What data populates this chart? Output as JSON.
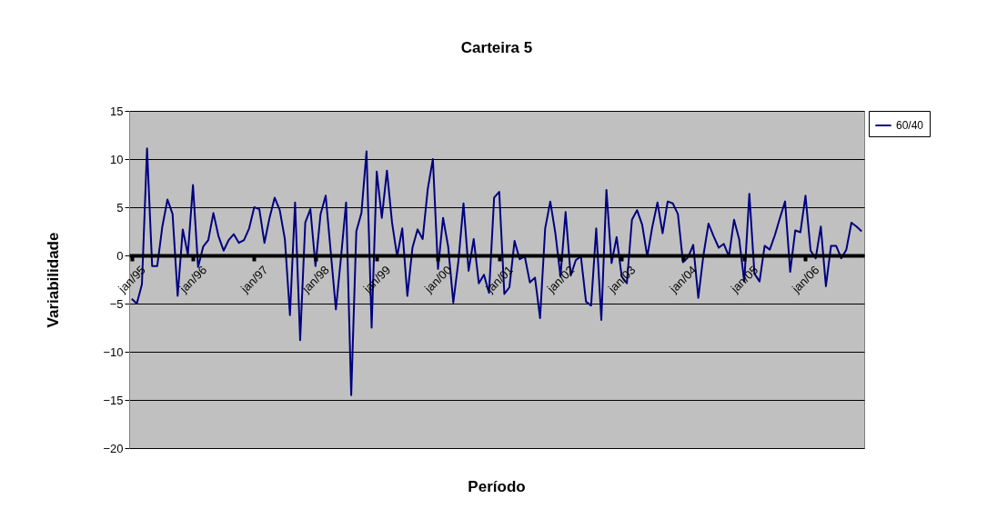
{
  "chart_data": {
    "type": "line",
    "title": "Carteira 5",
    "xlabel": "Período",
    "ylabel": "Variabilidade",
    "categories": [
      "jan/95",
      null,
      null,
      null,
      null,
      null,
      null,
      null,
      null,
      null,
      null,
      null,
      "jan/96",
      null,
      null,
      null,
      null,
      null,
      null,
      null,
      null,
      null,
      null,
      null,
      "jan/97",
      null,
      null,
      null,
      null,
      null,
      null,
      null,
      null,
      null,
      null,
      null,
      "jan/98",
      null,
      null,
      null,
      null,
      null,
      null,
      null,
      null,
      null,
      null,
      null,
      "jan/99",
      null,
      null,
      null,
      null,
      null,
      null,
      null,
      null,
      null,
      null,
      null,
      "jan/00",
      null,
      null,
      null,
      null,
      null,
      null,
      null,
      null,
      null,
      null,
      null,
      "jan/01",
      null,
      null,
      null,
      null,
      null,
      null,
      null,
      null,
      null,
      null,
      null,
      "jan/02",
      null,
      null,
      null,
      null,
      null,
      null,
      null,
      null,
      null,
      null,
      null,
      "jan/03",
      null,
      null,
      null,
      null,
      null,
      null,
      null,
      null,
      null,
      null,
      null,
      "jan/04",
      null,
      null,
      null,
      null,
      null,
      null,
      null,
      null,
      null,
      null,
      null,
      "jan/05",
      null,
      null,
      null,
      null,
      null,
      null,
      null,
      null,
      null,
      null,
      null,
      "jan/06",
      null,
      null,
      null,
      null,
      null,
      null,
      null,
      null,
      null,
      null,
      null
    ],
    "series": [
      {
        "name": "60/40",
        "color": "#000080",
        "values": [
          -4.5,
          -5.0,
          -3.0,
          11.1,
          -1.1,
          -1.1,
          3.0,
          5.8,
          4.3,
          -4.2,
          2.7,
          0.1,
          7.3,
          -1.2,
          0.9,
          1.6,
          4.4,
          2.0,
          0.5,
          1.6,
          2.2,
          1.3,
          1.6,
          2.8,
          5.0,
          4.8,
          1.3,
          3.9,
          6.0,
          4.7,
          1.7,
          -6.2,
          5.5,
          -8.8,
          3.4,
          4.8,
          -1.1,
          4.3,
          6.2,
          0.3,
          -5.6,
          -0.2,
          5.5,
          -14.5,
          2.5,
          4.4,
          10.8,
          -7.5,
          8.7,
          3.9,
          8.8,
          3.4,
          -0.1,
          2.8,
          -4.2,
          0.8,
          2.7,
          1.7,
          6.9,
          10.0,
          -1.4,
          3.9,
          0.9,
          -4.9,
          -0.6,
          5.4,
          -1.6,
          1.7,
          -2.9,
          -2.0,
          -3.9,
          6.0,
          6.6,
          -4.0,
          -3.3,
          1.5,
          -0.4,
          -0.1,
          -2.8,
          -2.3,
          -6.5,
          2.8,
          5.6,
          2.3,
          -2.2,
          4.5,
          -2.1,
          -0.5,
          -0.1,
          -4.8,
          -5.2,
          2.8,
          -6.7,
          6.8,
          -0.8,
          1.9,
          -2.2,
          -2.9,
          3.7,
          4.7,
          3.2,
          -0.1,
          3.0,
          5.5,
          2.3,
          5.6,
          5.4,
          4.3,
          -0.7,
          -0.2,
          1.1,
          -4.4,
          0.0,
          3.3,
          2.0,
          0.8,
          1.2,
          -0.1,
          3.7,
          1.7,
          -2.7,
          6.4,
          -1.9,
          -2.7,
          1.0,
          0.6,
          2.1,
          3.9,
          5.6,
          -1.7,
          2.6,
          2.4,
          6.2,
          0.5,
          -0.3,
          3.0,
          -3.2,
          1.0,
          1.0,
          -0.3,
          0.6,
          3.4,
          3.0,
          2.5
        ]
      }
    ],
    "ylim": [
      -20,
      15
    ],
    "yticks": [
      -20,
      -15,
      -10,
      -5,
      0,
      5,
      10,
      15
    ],
    "grid": "y",
    "legend": "right",
    "marker": "none",
    "line_style": "solid"
  }
}
